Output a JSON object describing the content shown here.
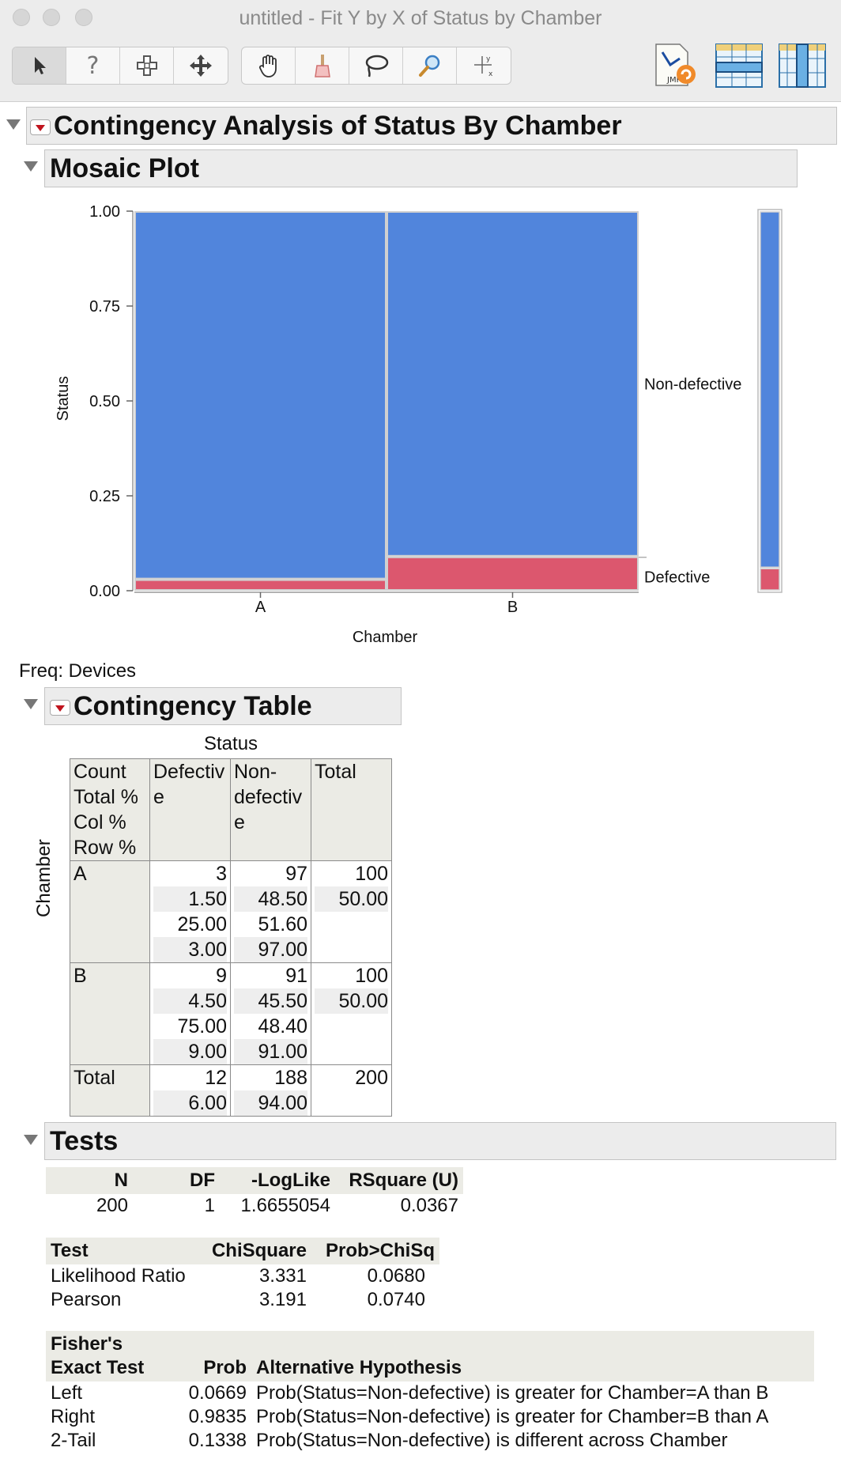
{
  "window": {
    "title": "untitled - Fit Y by X of Status by Chamber"
  },
  "toolbar": {
    "tools": [
      "arrow-icon",
      "help-icon",
      "crosshair-icon",
      "move-icon",
      "hand-icon",
      "brush-icon",
      "lasso-icon",
      "magnifier-icon",
      "scaler-icon"
    ],
    "right_icons": [
      "jmp-script-icon",
      "data-table-rows-icon",
      "data-table-cols-icon"
    ]
  },
  "report": {
    "title": "Contingency Analysis of Status By Chamber",
    "mosaic": {
      "title": "Mosaic Plot",
      "ylabel": "Status",
      "xlabel": "Chamber",
      "yticks": [
        "1.00",
        "0.75",
        "0.50",
        "0.25",
        "0.00"
      ],
      "levels": [
        "Non-defective",
        "Defective"
      ]
    },
    "freq_label": "Freq: Devices",
    "ctable": {
      "title": "Contingency Table",
      "col_group": "Status",
      "row_group": "Chamber",
      "corner": [
        "Count",
        "Total %",
        "Col %",
        "Row %"
      ],
      "col_headers": [
        "Defectiv e",
        "Non- defectiv e",
        "Total"
      ],
      "col_header_lines": [
        [
          "Defectiv",
          "e"
        ],
        [
          "Non-",
          "defectiv",
          "e"
        ],
        [
          "Total"
        ]
      ],
      "rows": [
        {
          "label": "A",
          "defective": [
            "3",
            "1.50",
            "25.00",
            "3.00"
          ],
          "nondefective": [
            "97",
            "48.50",
            "51.60",
            "97.00"
          ],
          "total": [
            "100",
            "50.00"
          ]
        },
        {
          "label": "B",
          "defective": [
            "9",
            "4.50",
            "75.00",
            "9.00"
          ],
          "nondefective": [
            "91",
            "45.50",
            "48.40",
            "91.00"
          ],
          "total": [
            "100",
            "50.00"
          ]
        },
        {
          "label": "Total",
          "defective": [
            "12",
            "6.00"
          ],
          "nondefective": [
            "188",
            "94.00"
          ],
          "total": [
            "200"
          ]
        }
      ]
    },
    "tests": {
      "title": "Tests",
      "summary": {
        "headers": [
          "N",
          "DF",
          "-LogLike",
          "RSquare (U)"
        ],
        "values": [
          "200",
          "1",
          "1.6655054",
          "0.0367"
        ]
      },
      "chisq": {
        "headers": [
          "Test",
          "ChiSquare",
          "Prob>ChiSq"
        ],
        "rows": [
          [
            "Likelihood Ratio",
            "3.331",
            "0.0680"
          ],
          [
            "Pearson",
            "3.191",
            "0.0740"
          ]
        ]
      },
      "fisher": {
        "headers": [
          "Fisher's",
          "Exact Test",
          "Prob",
          "Alternative Hypothesis"
        ],
        "rows": [
          [
            "Left",
            "0.0669",
            "Prob(Status=Non-defective) is greater for Chamber=A than B"
          ],
          [
            "Right",
            "0.9835",
            "Prob(Status=Non-defective) is greater for Chamber=B than A"
          ],
          [
            "2-Tail",
            "0.1338",
            "Prob(Status=Non-defective) is different across Chamber"
          ]
        ]
      }
    }
  },
  "colors": {
    "nondefective": "#5185dc",
    "defective": "#dc576e"
  },
  "chart_data": {
    "type": "mosaic",
    "categories": [
      "A",
      "B"
    ],
    "x_widths": [
      0.5,
      0.5
    ],
    "series": [
      {
        "name": "Defective",
        "values": [
          0.03,
          0.09
        ]
      },
      {
        "name": "Non-defective",
        "values": [
          0.97,
          0.91
        ]
      }
    ],
    "marginal": {
      "Defective": 0.06,
      "Non-defective": 0.94
    },
    "title": "Mosaic Plot",
    "xlabel": "Chamber",
    "ylabel": "Status",
    "ylim": [
      0,
      1
    ]
  }
}
